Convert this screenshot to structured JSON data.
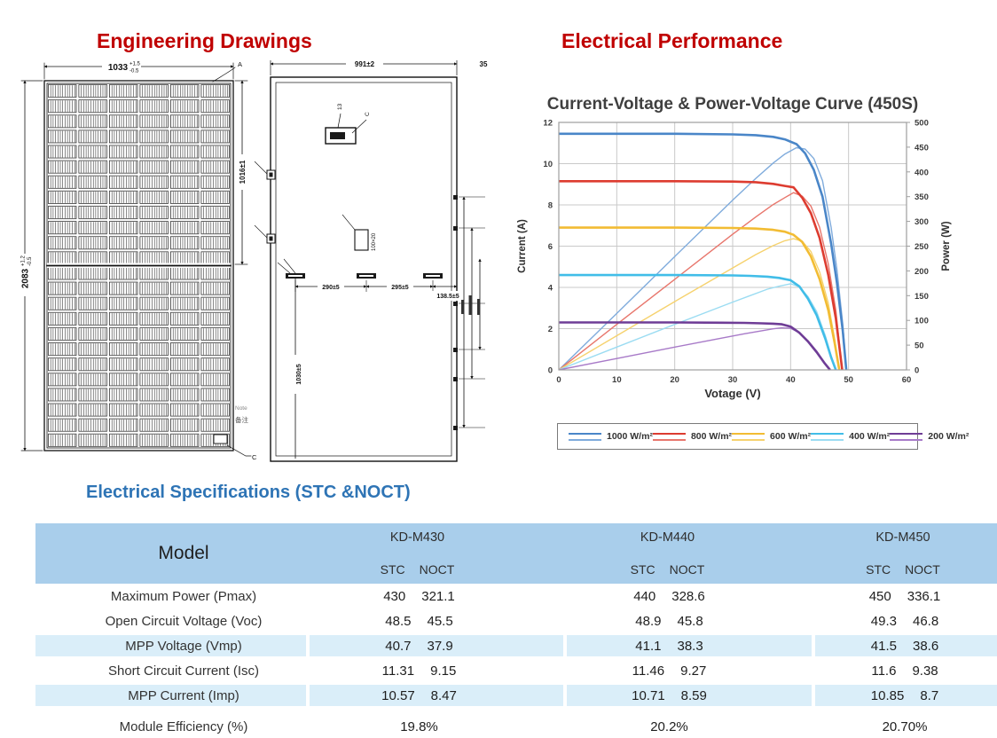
{
  "headings": {
    "left": "Engineering Drawings",
    "right": "Electrical Performance"
  },
  "drawings": {
    "front": {
      "width_value": "1033",
      "width_tol_up": "+1.5",
      "width_tol_dn": "-0.5",
      "height_value": "2083",
      "height_tol_up": "+1.2",
      "height_tol_dn": "-0.5",
      "hole_dim": "1016±1",
      "detail_a": "A",
      "detail_c": "C",
      "note_en": "Note",
      "note_cn": "备注"
    },
    "back": {
      "width_dim": "991±2",
      "frame_depth": "35",
      "hole_spacing_1": "290±5",
      "hole_spacing_2": "295±5",
      "hole_spacing_3": "138.5±5",
      "hole_offset": "1030±5",
      "junction_label": "100×20",
      "lead_label_1": "13",
      "lead_label_2": "C"
    }
  },
  "chart_data": {
    "type": "line",
    "title": "Current-Voltage & Power-Voltage Curve (450S)",
    "xlabel": "Votage (V)",
    "ylabel_left": "Current (A)",
    "ylabel_right": "Power (W)",
    "x_max": 60,
    "y_left_max": 12,
    "y_right_max": 500,
    "x_ticks": [
      0,
      10,
      20,
      30,
      40,
      50,
      60
    ],
    "y_left_ticks": [
      0,
      2,
      4,
      6,
      8,
      10,
      12
    ],
    "y_right_ticks": [
      0,
      50,
      100,
      150,
      200,
      250,
      300,
      350,
      400,
      450,
      500
    ],
    "grid": true,
    "legend_position": "bottom",
    "series": [
      {
        "name": "1000 W/m²",
        "color": "#4a86c8",
        "color_light": "#7fabdc",
        "iv": [
          [
            0,
            11.45
          ],
          [
            10,
            11.45
          ],
          [
            20,
            11.45
          ],
          [
            30,
            11.42
          ],
          [
            34,
            11.38
          ],
          [
            37,
            11.3
          ],
          [
            39,
            11.18
          ],
          [
            41,
            10.95
          ],
          [
            42.5,
            10.5
          ],
          [
            44,
            9.7
          ],
          [
            45.5,
            8.4
          ],
          [
            47,
            6.1
          ],
          [
            48,
            4.2
          ],
          [
            49,
            1.9
          ],
          [
            49.6,
            0
          ]
        ],
        "pv": [
          [
            0,
            0
          ],
          [
            10,
            114
          ],
          [
            20,
            229
          ],
          [
            30,
            343
          ],
          [
            34,
            387
          ],
          [
            37,
            418
          ],
          [
            39,
            436
          ],
          [
            41,
            449
          ],
          [
            42.5,
            446
          ],
          [
            44,
            427
          ],
          [
            45.5,
            382
          ],
          [
            47,
            287
          ],
          [
            48,
            202
          ],
          [
            49,
            93
          ],
          [
            49.6,
            0
          ]
        ]
      },
      {
        "name": "800 W/m²",
        "color": "#dd3c30",
        "color_light": "#e8766c",
        "iv": [
          [
            0,
            9.15
          ],
          [
            10,
            9.15
          ],
          [
            20,
            9.15
          ],
          [
            30,
            9.13
          ],
          [
            34,
            9.1
          ],
          [
            37,
            9.02
          ],
          [
            39,
            8.92
          ],
          [
            40.5,
            8.85
          ],
          [
            42,
            8.35
          ],
          [
            43.5,
            7.6
          ],
          [
            45,
            6.4
          ],
          [
            46.5,
            4.6
          ],
          [
            47.8,
            2.5
          ],
          [
            48.9,
            0
          ]
        ],
        "pv": [
          [
            0,
            0
          ],
          [
            10,
            92
          ],
          [
            20,
            183
          ],
          [
            30,
            274
          ],
          [
            34,
            309
          ],
          [
            37,
            334
          ],
          [
            39,
            348
          ],
          [
            40.5,
            358
          ],
          [
            42,
            351
          ],
          [
            43.5,
            331
          ],
          [
            45,
            288
          ],
          [
            46.5,
            214
          ],
          [
            47.8,
            120
          ],
          [
            48.9,
            0
          ]
        ]
      },
      {
        "name": "600 W/m²",
        "color": "#f2bc33",
        "color_light": "#f6d26e",
        "iv": [
          [
            0,
            6.9
          ],
          [
            10,
            6.9
          ],
          [
            20,
            6.9
          ],
          [
            30,
            6.88
          ],
          [
            34,
            6.85
          ],
          [
            37,
            6.79
          ],
          [
            39,
            6.7
          ],
          [
            40.5,
            6.55
          ],
          [
            42,
            6.2
          ],
          [
            43.5,
            5.5
          ],
          [
            45,
            4.4
          ],
          [
            46.5,
            2.9
          ],
          [
            47.6,
            1.3
          ],
          [
            48.4,
            0
          ]
        ],
        "pv": [
          [
            0,
            0
          ],
          [
            10,
            69
          ],
          [
            20,
            138
          ],
          [
            30,
            206
          ],
          [
            34,
            233
          ],
          [
            37,
            251
          ],
          [
            39,
            261
          ],
          [
            40.5,
            265
          ],
          [
            42,
            260
          ],
          [
            43.5,
            239
          ],
          [
            45,
            198
          ],
          [
            46.5,
            135
          ],
          [
            47.6,
            62
          ],
          [
            48.4,
            0
          ]
        ]
      },
      {
        "name": "400 W/m²",
        "color": "#41bde8",
        "color_light": "#9bdcf2",
        "iv": [
          [
            0,
            4.6
          ],
          [
            10,
            4.6
          ],
          [
            20,
            4.6
          ],
          [
            30,
            4.58
          ],
          [
            33,
            4.56
          ],
          [
            36,
            4.52
          ],
          [
            38,
            4.46
          ],
          [
            40,
            4.35
          ],
          [
            41.5,
            4.05
          ],
          [
            43,
            3.45
          ],
          [
            44.5,
            2.65
          ],
          [
            46,
            1.5
          ],
          [
            47,
            0.6
          ],
          [
            47.8,
            0
          ]
        ],
        "pv": [
          [
            0,
            0
          ],
          [
            10,
            46
          ],
          [
            20,
            92
          ],
          [
            30,
            137
          ],
          [
            33,
            150
          ],
          [
            36,
            163
          ],
          [
            38,
            169
          ],
          [
            40,
            174
          ],
          [
            41.5,
            168
          ],
          [
            43,
            148
          ],
          [
            44.5,
            118
          ],
          [
            46,
            69
          ],
          [
            47,
            28
          ],
          [
            47.8,
            0
          ]
        ]
      },
      {
        "name": "200 W/m²",
        "color": "#6f3d96",
        "color_light": "#a87ac8",
        "iv": [
          [
            0,
            2.3
          ],
          [
            10,
            2.3
          ],
          [
            20,
            2.3
          ],
          [
            28,
            2.29
          ],
          [
            32,
            2.28
          ],
          [
            35,
            2.26
          ],
          [
            37,
            2.24
          ],
          [
            38.5,
            2.21
          ],
          [
            40,
            2.1
          ],
          [
            41.5,
            1.8
          ],
          [
            43,
            1.38
          ],
          [
            44.5,
            0.86
          ],
          [
            45.8,
            0.35
          ],
          [
            46.8,
            0
          ]
        ],
        "pv": [
          [
            0,
            0
          ],
          [
            10,
            23
          ],
          [
            20,
            46
          ],
          [
            28,
            64
          ],
          [
            32,
            73
          ],
          [
            35,
            79
          ],
          [
            37,
            83
          ],
          [
            38.5,
            85
          ],
          [
            40,
            84
          ],
          [
            41.5,
            75
          ],
          [
            43,
            59
          ],
          [
            44.5,
            38
          ],
          [
            45.8,
            16
          ],
          [
            46.8,
            0
          ]
        ]
      }
    ]
  },
  "spec_table": {
    "title": "Electrical Specifications (STC &NOCT)",
    "model_header": "Model",
    "models": [
      "KD-M430",
      "KD-M440",
      "KD-M450"
    ],
    "condition_headers": [
      "STC",
      "NOCT"
    ],
    "rows": [
      {
        "label": "Maximum Power (Pmax)",
        "striped": false,
        "values": [
          [
            "430",
            "321.1"
          ],
          [
            "440",
            "328.6"
          ],
          [
            "450",
            "336.1"
          ]
        ]
      },
      {
        "label": "Open Circuit Voltage (Voc)",
        "striped": false,
        "values": [
          [
            "48.5",
            "45.5"
          ],
          [
            "48.9",
            "45.8"
          ],
          [
            "49.3",
            "46.8"
          ]
        ]
      },
      {
        "label": "MPP Voltage (Vmp)",
        "striped": true,
        "values": [
          [
            "40.7",
            "37.9"
          ],
          [
            "41.1",
            "38.3"
          ],
          [
            "41.5",
            "38.6"
          ]
        ]
      },
      {
        "label": "Short Circuit Current (Isc)",
        "striped": false,
        "values": [
          [
            "11.31",
            "9.15"
          ],
          [
            "11.46",
            "9.27"
          ],
          [
            "11.6",
            "9.38"
          ]
        ]
      },
      {
        "label": "MPP Current (Imp)",
        "striped": true,
        "values": [
          [
            "10.57",
            "8.47"
          ],
          [
            "10.71",
            "8.59"
          ],
          [
            "10.85",
            "8.7"
          ]
        ]
      },
      {
        "label": "Module Efficiency (%)",
        "striped": false,
        "values": [
          [
            "19.8%"
          ],
          [
            "20.2%"
          ],
          [
            "20.70%"
          ]
        ]
      }
    ]
  }
}
